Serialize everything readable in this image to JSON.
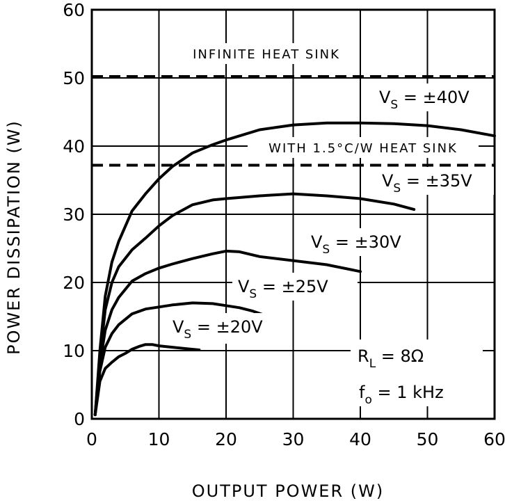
{
  "chart_data": {
    "type": "line",
    "title": "",
    "xlabel": "OUTPUT POWER (W)",
    "ylabel": "POWER DISSIPATION (W)",
    "xlim": [
      0,
      60
    ],
    "ylim": [
      0,
      60
    ],
    "xticks": [
      0,
      10,
      20,
      30,
      40,
      50,
      60
    ],
    "yticks": [
      0,
      10,
      20,
      30,
      40,
      50,
      60
    ],
    "grid": true,
    "legend": "none",
    "series": [
      {
        "name": "VS = ±40V",
        "label_main": "V",
        "label_sub": "S",
        "label_rest": " = ±40V",
        "x": [
          0.5,
          1.2,
          2,
          3,
          4,
          6,
          8,
          10,
          12,
          15,
          18,
          20,
          25,
          30,
          35,
          40,
          45,
          50,
          55,
          60
        ],
        "y": [
          0.6,
          10,
          18,
          23,
          26,
          30.5,
          33,
          35.2,
          37,
          39,
          40.2,
          40.9,
          42.4,
          43.1,
          43.4,
          43.4,
          43.3,
          43.0,
          42.4,
          41.5
        ]
      },
      {
        "name": "VS = ±35V",
        "label_main": "V",
        "label_sub": "S",
        "label_rest": " = ±35V",
        "x": [
          0.5,
          1.2,
          2,
          3,
          4,
          6,
          8,
          10,
          12,
          15,
          18,
          20,
          25,
          30,
          35,
          40,
          45,
          48
        ],
        "y": [
          0.6,
          9,
          16,
          20,
          22.3,
          24.8,
          26.5,
          28.3,
          29.8,
          31.4,
          32.1,
          32.3,
          32.7,
          33.0,
          32.7,
          32.3,
          31.5,
          30.7
        ]
      },
      {
        "name": "VS = ±30V",
        "label_main": "V",
        "label_sub": "S",
        "label_rest": " = ±30V",
        "x": [
          0.5,
          1.2,
          2,
          3,
          4,
          6,
          8,
          10,
          12,
          15,
          18,
          20,
          22,
          25,
          30,
          35,
          40
        ],
        "y": [
          0.6,
          8,
          13,
          16,
          17.8,
          20.2,
          21.3,
          22.1,
          22.7,
          23.5,
          24.2,
          24.6,
          24.5,
          23.8,
          23.2,
          22.6,
          21.6
        ]
      },
      {
        "name": "VS = ±25V",
        "label_main": "V",
        "label_sub": "S",
        "label_rest": " = ±25V",
        "x": [
          0.5,
          1.2,
          2,
          3,
          4,
          6,
          8,
          10,
          12,
          15,
          18,
          20,
          22,
          24,
          26
        ],
        "y": [
          0.6,
          7,
          10.5,
          12.5,
          13.8,
          15.4,
          16.1,
          16.4,
          16.7,
          17.0,
          16.9,
          16.6,
          16.3,
          15.8,
          15.1
        ]
      },
      {
        "name": "VS = ±20V",
        "label_main": "V",
        "label_sub": "S",
        "label_rest": " = ±20V",
        "x": [
          0.5,
          1.2,
          2,
          3,
          4,
          5,
          6,
          7,
          8,
          9,
          10,
          12,
          14,
          16
        ],
        "y": [
          0.6,
          5.5,
          7.4,
          8.3,
          9.1,
          9.6,
          10.2,
          10.6,
          10.9,
          10.9,
          10.7,
          10.5,
          10.3,
          10.1
        ]
      }
    ],
    "reference_lines": [
      {
        "y": 50.2,
        "label": "INFINITE HEAT SINK"
      },
      {
        "y": 37.2,
        "label": "WITH 1.5°C/W HEAT SINK"
      }
    ],
    "annotations": {
      "rl_main": "R",
      "rl_sub": "L",
      "rl_rest": "  =  8Ω",
      "fo_main": "f",
      "fo_sub": "o",
      "fo_rest": "  =  1 kHz"
    }
  }
}
